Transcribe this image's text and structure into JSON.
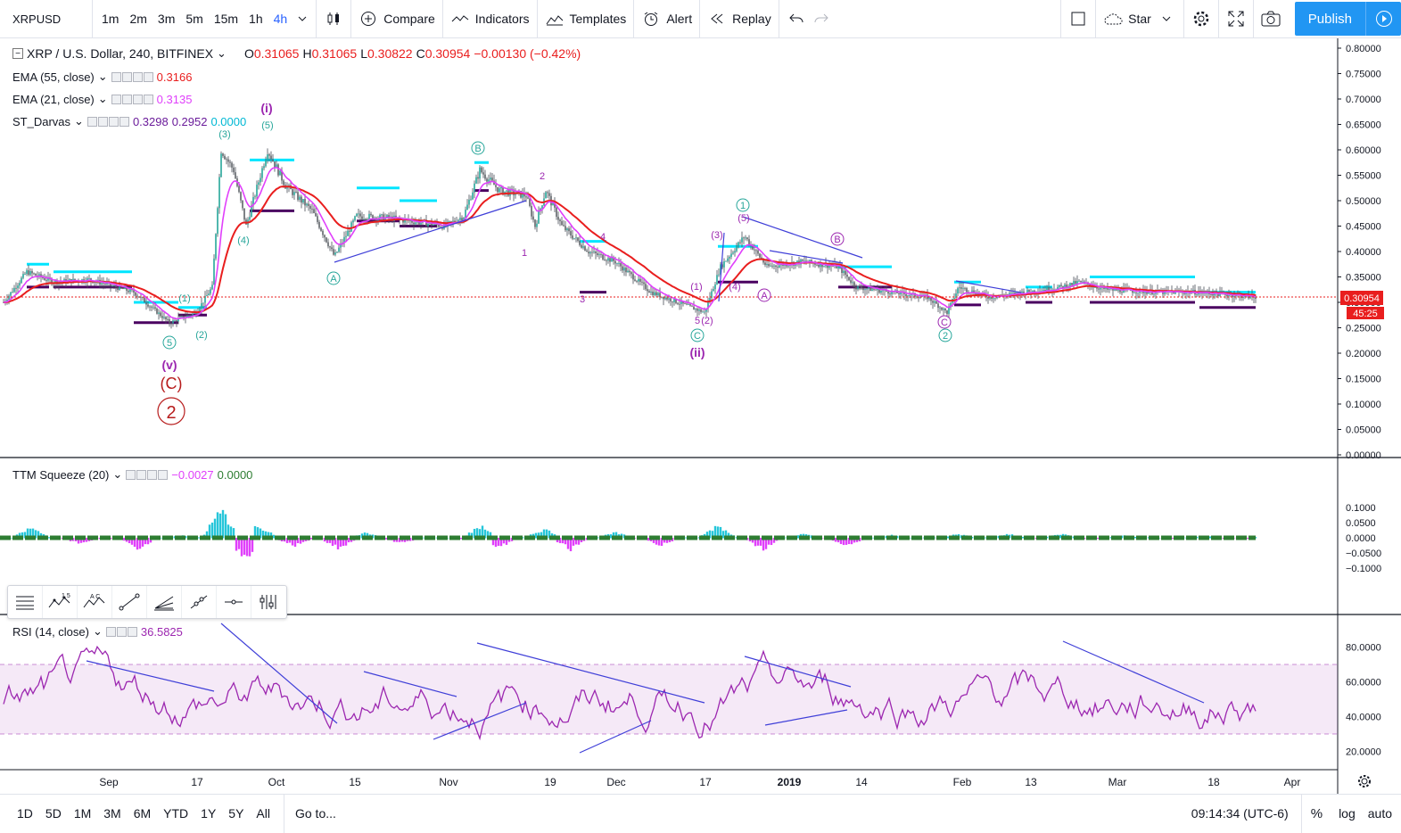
{
  "toolbar": {
    "symbol": "XRPUSD",
    "intervals": [
      "1m",
      "2m",
      "3m",
      "5m",
      "15m",
      "1h",
      "4h"
    ],
    "active_interval": "4h",
    "compare": "Compare",
    "indicators": "Indicators",
    "templates": "Templates",
    "alert": "Alert",
    "replay": "Replay",
    "star": "Star",
    "publish": "Publish"
  },
  "legend": {
    "title": "XRP / U.S. Dollar, 240, BITFINEX",
    "o_label": "O",
    "o": "0.31065",
    "h_label": "H",
    "h": "0.31065",
    "l_label": "L",
    "l": "0.30822",
    "c_label": "C",
    "c": "0.30954",
    "change": "−0.00130 (−0.42%)",
    "ema55_label": "EMA (55, close)",
    "ema55": "0.3166",
    "ema21_label": "EMA (21, close)",
    "ema21": "0.3135",
    "darvas_label": "ST_Darvas",
    "darvas_1": "0.3298",
    "darvas_2": "0.2952",
    "darvas_3": "0.0000",
    "ttm_label": "TTM Squeeze (20)",
    "ttm_1": "−0.0027",
    "ttm_2": "0.0000",
    "rsi_label": "RSI (14, close)",
    "rsi": "36.5825"
  },
  "price_axis": {
    "labels": [
      "0.80000",
      "0.75000",
      "0.70000",
      "0.65000",
      "0.60000",
      "0.55000",
      "0.50000",
      "0.45000",
      "0.40000",
      "0.35000",
      "0.30000",
      "0.25000",
      "0.20000",
      "0.15000",
      "0.10000",
      "0.05000",
      "0.00000"
    ],
    "last_price": "0.30954",
    "countdown": "45:25"
  },
  "ttm_axis": {
    "labels": [
      "0.1000",
      "0.0500",
      "0.0000",
      "−0.0500",
      "−0.1000"
    ]
  },
  "rsi_axis": {
    "labels": [
      "80.0000",
      "60.0000",
      "40.0000",
      "20.0000"
    ]
  },
  "time_axis": {
    "labels": [
      "Sep",
      "17",
      "Oct",
      "15",
      "Nov",
      "19",
      "Dec",
      "17",
      "2019",
      "14",
      "Feb",
      "13",
      "Mar",
      "18",
      "Apr"
    ]
  },
  "wave_labels": {
    "i": "(i)",
    "ii": "(ii)",
    "v": "(v)",
    "C_big": "(C)",
    "two_big": "2",
    "p3": "(3)",
    "p5": "(5)",
    "p4": "(4)",
    "c5": "5",
    "c1": "(1)",
    "c2": "(2)",
    "A1": "A",
    "B1": "B",
    "C1": "C",
    "C2": "C",
    "A2": "A",
    "B2": "B",
    "n1": "1",
    "n2": "2",
    "n3": "3",
    "n4": "4",
    "r1": "1",
    "r2": "2",
    "r5": "5",
    "g1": "(1)",
    "g2": "(2)",
    "g3": "(3)",
    "g4": "(4)",
    "g5": "(5)",
    "g2b": "(2)"
  },
  "bottom": {
    "ranges": [
      "1D",
      "5D",
      "1M",
      "3M",
      "6M",
      "YTD",
      "1Y",
      "5Y",
      "All"
    ],
    "goto": "Go to...",
    "time": "09:14:34 (UTC-6)",
    "percent": "%",
    "log": "log",
    "auto": "auto"
  },
  "colors": {
    "ema55": "#e91e1e",
    "ema21": "#e040fb",
    "darvas_top": "#00e5ff",
    "darvas_bottom": "#4a0060",
    "candle": "#5f6368",
    "rsi": "#9c27b0",
    "trend": "#3f3fd8",
    "ttm_pos": "#26c6da",
    "ttm_neg": "#e040fb"
  }
}
